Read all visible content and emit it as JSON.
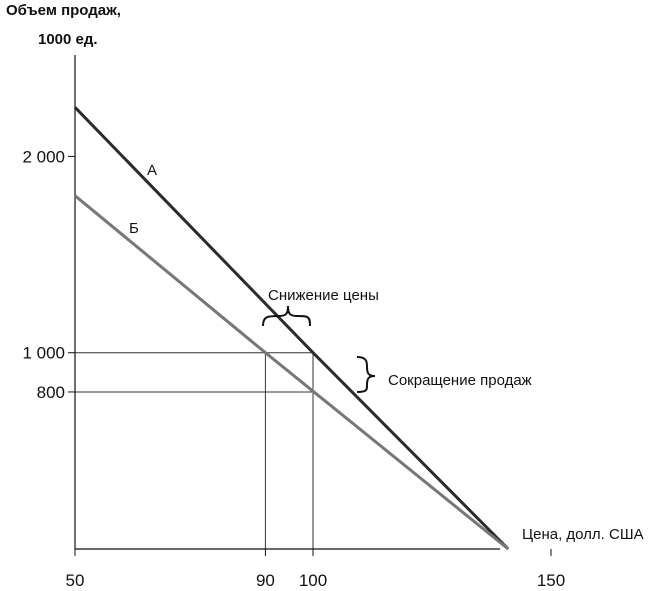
{
  "chart_data": {
    "type": "line",
    "ylabel_line1": "Объем продаж,",
    "ylabel_line2": "1000 ед.",
    "xlabel": "Цена, долл. США",
    "xlim": [
      50,
      150
    ],
    "ylim": [
      0,
      2500
    ],
    "x_ticks": [
      {
        "value": 50,
        "label": "50"
      },
      {
        "value": 90,
        "label": "90"
      },
      {
        "value": 100,
        "label": "100"
      },
      {
        "value": 150,
        "label": "150"
      }
    ],
    "y_ticks": [
      {
        "value": 2000,
        "label": "2 000"
      },
      {
        "value": 1000,
        "label": "1 000"
      },
      {
        "value": 800,
        "label": "800"
      }
    ],
    "series": [
      {
        "name": "А",
        "color": "#2b2b2b",
        "x": [
          50,
          100,
          141
        ],
        "y": [
          2250,
          1000,
          0
        ]
      },
      {
        "name": "Б",
        "color": "#777777",
        "x": [
          50,
          90,
          141
        ],
        "y": [
          1800,
          1000,
          0
        ]
      }
    ],
    "reference_lines": [
      {
        "kind": "h",
        "y": 1000,
        "x_from": 50,
        "x_to": 100
      },
      {
        "kind": "h",
        "y": 800,
        "x_from": 50,
        "x_to": 100
      },
      {
        "kind": "v",
        "x": 90,
        "y_from": 0,
        "y_to": 1000
      },
      {
        "kind": "v",
        "x": 100,
        "y_from": 0,
        "y_to": 1000
      }
    ],
    "annotations": {
      "price_drop": "Снижение цены",
      "sales_drop": "Сокращение продаж"
    },
    "grid": false
  }
}
